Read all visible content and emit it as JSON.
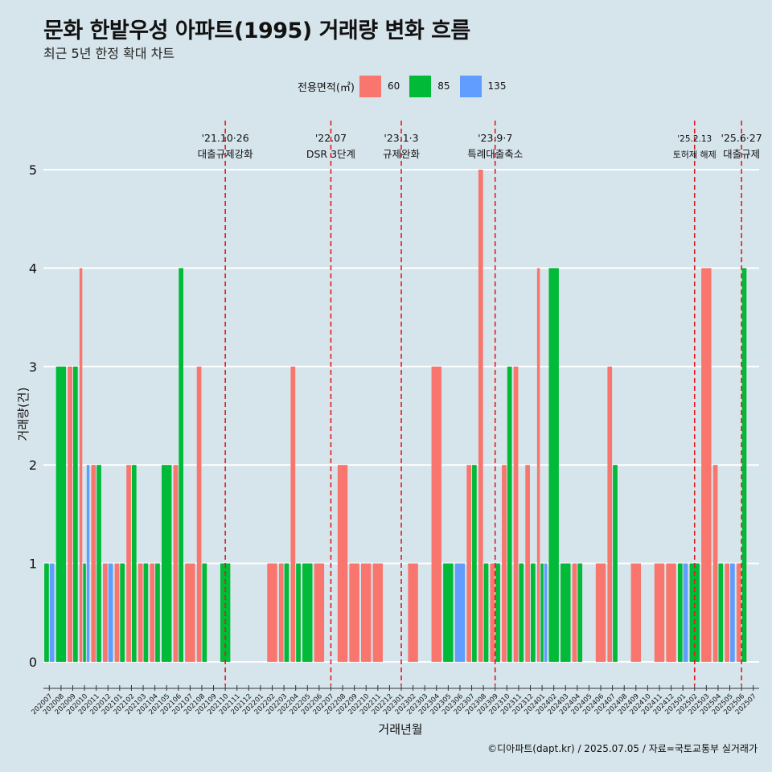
{
  "title": "문화 한밭우성 아파트(1995) 거래량 변화 흐름",
  "subtitle": "최근 5년 한정 확대 차트",
  "caption": "©디아파트(dapt.kr) / 2025.07.05 / 자료=국토교통부 실거래가",
  "legend": {
    "title": "전용면적(㎡)",
    "items": [
      {
        "label": "60",
        "color": "#f8766d"
      },
      {
        "label": "85",
        "color": "#00ba38"
      },
      {
        "label": "135",
        "color": "#619cff"
      }
    ]
  },
  "chart_data": {
    "type": "bar",
    "xlabel": "거래년월",
    "ylabel": "거래량(건)",
    "ylim": [
      0,
      5
    ],
    "yticks": [
      0,
      1,
      2,
      3,
      4,
      5
    ],
    "grid": true,
    "legend_position": "top",
    "categories": [
      "202007",
      "202008",
      "202009",
      "202010",
      "202011",
      "202012",
      "202101",
      "202102",
      "202103",
      "202104",
      "202105",
      "202106",
      "202107",
      "202108",
      "202109",
      "202110",
      "202111",
      "202112",
      "202201",
      "202202",
      "202203",
      "202204",
      "202205",
      "202206",
      "202207",
      "202208",
      "202209",
      "202210",
      "202211",
      "202212",
      "202301",
      "202302",
      "202303",
      "202304",
      "202305",
      "202306",
      "202307",
      "202308",
      "202309",
      "202310",
      "202311",
      "202312",
      "202401",
      "202402",
      "202403",
      "202404",
      "202405",
      "202406",
      "202407",
      "202408",
      "202409",
      "202410",
      "202411",
      "202412",
      "202501",
      "202502",
      "202503",
      "202504",
      "202505",
      "202506",
      "202507"
    ],
    "series": [
      {
        "name": "60",
        "color": "#f8766d",
        "values": [
          0,
          0,
          3,
          4,
          2,
          1,
          1,
          2,
          1,
          1,
          0,
          2,
          1,
          3,
          0,
          0,
          0,
          0,
          0,
          1,
          1,
          3,
          0,
          1,
          0,
          2,
          1,
          1,
          1,
          0,
          0,
          1,
          0,
          3,
          0,
          0,
          2,
          5,
          1,
          2,
          3,
          2,
          4,
          0,
          0,
          1,
          0,
          1,
          3,
          0,
          1,
          0,
          1,
          1,
          0,
          0,
          4,
          2,
          1,
          1,
          0
        ]
      },
      {
        "name": "85",
        "color": "#00ba38",
        "values": [
          1,
          3,
          3,
          1,
          2,
          0,
          1,
          2,
          1,
          1,
          2,
          4,
          0,
          1,
          0,
          1,
          0,
          0,
          0,
          0,
          1,
          1,
          1,
          0,
          0,
          0,
          0,
          0,
          0,
          0,
          0,
          0,
          0,
          0,
          1,
          0,
          2,
          1,
          1,
          3,
          1,
          1,
          1,
          4,
          1,
          1,
          0,
          0,
          2,
          0,
          0,
          0,
          0,
          0,
          1,
          1,
          0,
          1,
          0,
          4,
          0
        ]
      },
      {
        "name": "135",
        "color": "#619cff",
        "values": [
          1,
          0,
          0,
          2,
          0,
          1,
          0,
          0,
          0,
          0,
          0,
          0,
          0,
          0,
          0,
          0,
          0,
          0,
          0,
          0,
          0,
          0,
          0,
          0,
          0,
          0,
          0,
          0,
          0,
          0,
          0,
          0,
          0,
          0,
          0,
          1,
          0,
          0,
          0,
          0,
          0,
          0,
          1,
          0,
          0,
          0,
          0,
          0,
          0,
          0,
          0,
          0,
          0,
          0,
          1,
          0,
          0,
          0,
          1,
          0,
          0
        ]
      }
    ],
    "events": [
      {
        "month": "202110",
        "date": "'21.10·26",
        "label": "대출규제강화"
      },
      {
        "month": "202207",
        "date": "'22.07",
        "label": "DSR 3단계"
      },
      {
        "month": "202301",
        "date": "'23.1·3",
        "label": "규제완화"
      },
      {
        "month": "202309",
        "date": "'23.9·7",
        "label": "특례대출축소"
      },
      {
        "month": "202502",
        "date": "'25.2.13",
        "label": "토허제 해제"
      },
      {
        "month": "202506",
        "date": "'25.6·27",
        "label": "대출규제"
      }
    ]
  }
}
